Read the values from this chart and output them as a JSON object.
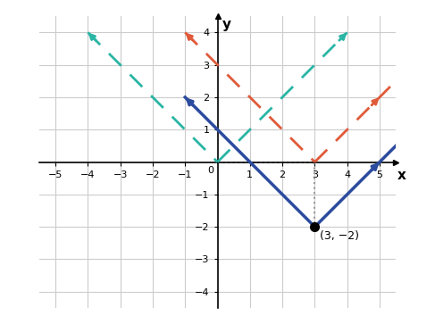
{
  "xlim": [
    -5.5,
    5.5
  ],
  "ylim": [
    -4.5,
    4.5
  ],
  "xticks": [
    -5,
    -4,
    -3,
    -2,
    -1,
    1,
    2,
    3,
    4,
    5
  ],
  "yticks": [
    -4,
    -3,
    -2,
    -1,
    1,
    2,
    3,
    4
  ],
  "xlabel": "x",
  "ylabel": "y",
  "vertex_point": [
    3,
    -2
  ],
  "vertex_label": "(3, −2)",
  "teal_color": "#2ab5a5",
  "red_color": "#e05a3a",
  "blue_color": "#2b4b9e",
  "gray_dotted_color": "#999999",
  "background_color": "#ffffff",
  "grid_color": "#cccccc"
}
